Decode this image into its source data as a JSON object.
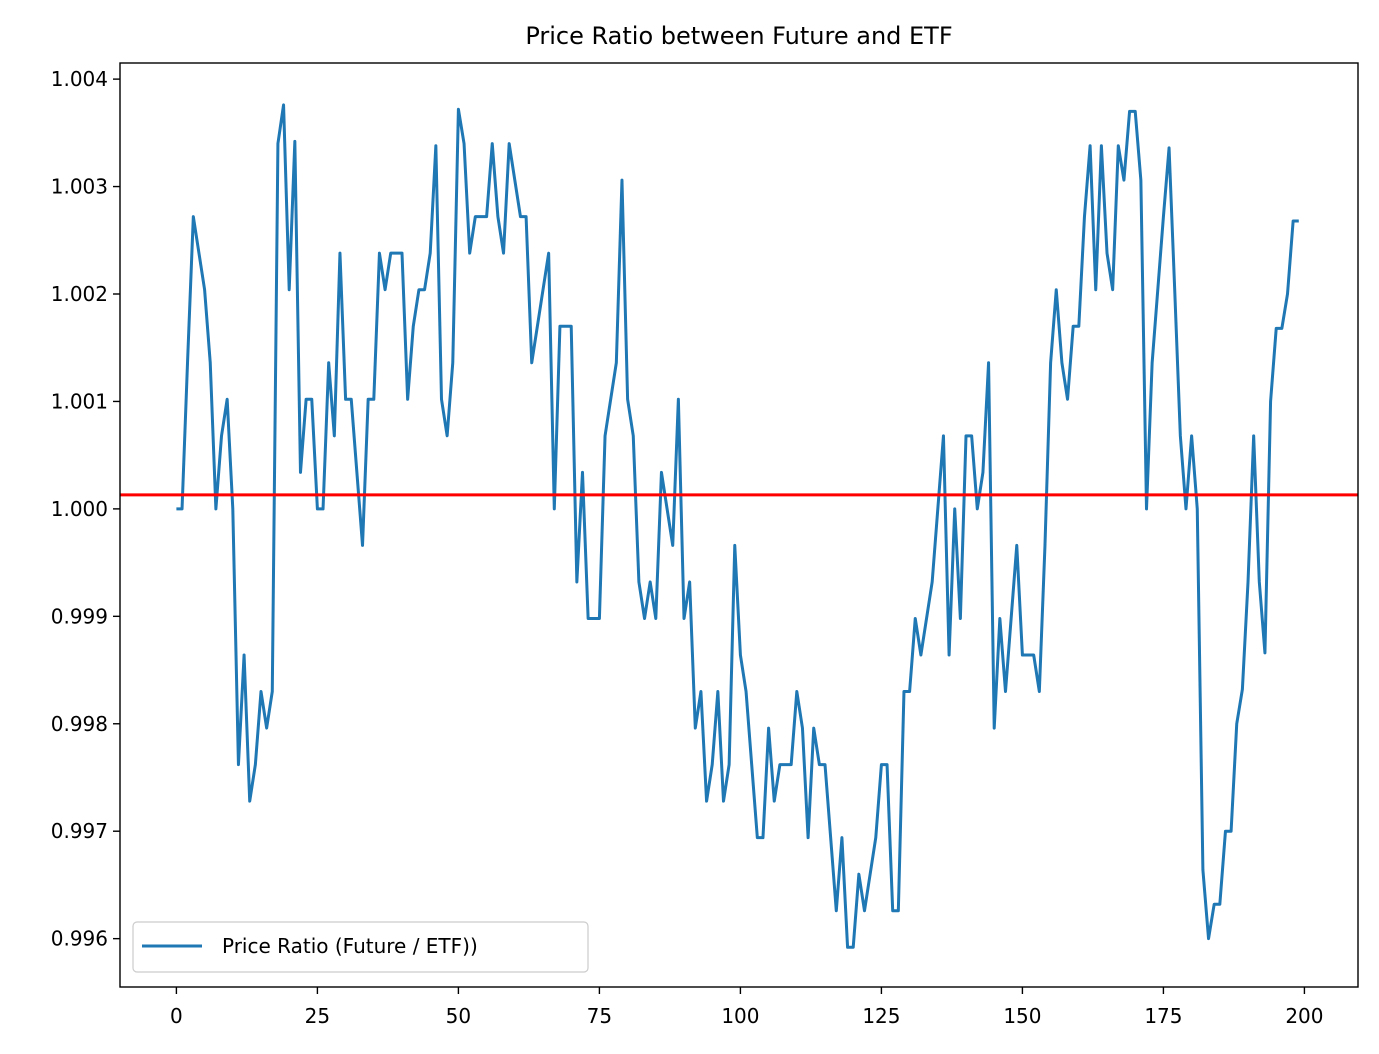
{
  "chart_data": {
    "type": "line",
    "title": "Price Ratio between Future and ETF",
    "xlabel": "",
    "ylabel": "",
    "xlim": [
      -10,
      209.5
    ],
    "ylim": [
      0.99555,
      1.00415
    ],
    "xticks": [
      0,
      25,
      50,
      75,
      100,
      125,
      150,
      175,
      200
    ],
    "xtick_labels": [
      "0",
      "25",
      "50",
      "75",
      "100",
      "125",
      "150",
      "175",
      "200"
    ],
    "yticks": [
      0.996,
      0.997,
      0.998,
      0.999,
      1.0,
      1.001,
      1.002,
      1.003,
      1.004
    ],
    "ytick_labels": [
      "0.996",
      "0.997",
      "0.998",
      "0.999",
      "1.000",
      "1.001",
      "1.002",
      "1.003",
      "1.004"
    ],
    "grid": false,
    "legend_position": "lower left",
    "legend_label": "Price Ratio (Future / ETF))",
    "hline": {
      "y": 1.00013,
      "color": "#ff0000"
    },
    "series": [
      {
        "name": "Price Ratio (Future / ETF))",
        "color": "#1f77b4",
        "x": [
          0,
          1,
          2,
          3,
          4,
          5,
          6,
          7,
          8,
          9,
          10,
          11,
          12,
          13,
          14,
          15,
          16,
          17,
          18,
          19,
          20,
          21,
          22,
          23,
          24,
          25,
          26,
          27,
          28,
          29,
          30,
          31,
          32,
          33,
          34,
          35,
          36,
          37,
          38,
          39,
          40,
          41,
          42,
          43,
          44,
          45,
          46,
          47,
          48,
          49,
          50,
          51,
          52,
          53,
          54,
          55,
          56,
          57,
          58,
          59,
          60,
          61,
          62,
          63,
          64,
          65,
          66,
          67,
          68,
          69,
          70,
          71,
          72,
          73,
          74,
          75,
          76,
          77,
          78,
          79,
          80,
          81,
          82,
          83,
          84,
          85,
          86,
          87,
          88,
          89,
          90,
          91,
          92,
          93,
          94,
          95,
          96,
          97,
          98,
          99,
          100,
          101,
          102,
          103,
          104,
          105,
          106,
          107,
          108,
          109,
          110,
          111,
          112,
          113,
          114,
          115,
          116,
          117,
          118,
          119,
          120,
          121,
          122,
          123,
          124,
          125,
          126,
          127,
          128,
          129,
          130,
          131,
          132,
          133,
          134,
          135,
          136,
          137,
          138,
          139,
          140,
          141,
          142,
          143,
          144,
          145,
          146,
          147,
          148,
          149,
          150,
          151,
          152,
          153,
          154,
          155,
          156,
          157,
          158,
          159,
          160,
          161,
          162,
          163,
          164,
          165,
          166,
          167,
          168,
          169,
          170,
          171,
          172,
          173,
          174,
          175,
          176,
          177,
          178,
          179,
          180,
          181,
          182,
          183,
          184,
          185,
          186,
          187,
          188,
          189,
          190,
          191,
          192,
          193,
          194,
          195,
          196,
          197,
          198,
          199
        ],
        "y": [
          1.0,
          1.0,
          1.0014,
          1.00272,
          1.00238,
          1.00204,
          1.00136,
          1.0,
          1.00068,
          1.00102,
          1.0,
          0.99762,
          0.99864,
          0.99728,
          0.99762,
          0.9983,
          0.99796,
          0.9983,
          1.0034,
          1.00376,
          1.00204,
          1.00342,
          1.00034,
          1.00102,
          1.00102,
          1.0,
          1.0,
          1.00136,
          1.00068,
          1.00238,
          1.00102,
          1.00102,
          1.00034,
          0.99966,
          1.00102,
          1.00102,
          1.00238,
          1.00204,
          1.00238,
          1.00238,
          1.00238,
          1.00102,
          1.0017,
          1.00204,
          1.00204,
          1.00238,
          1.00338,
          1.00102,
          1.00068,
          1.00136,
          1.00372,
          1.0034,
          1.00238,
          1.00272,
          1.00272,
          1.00272,
          1.0034,
          1.00272,
          1.00238,
          1.0034,
          1.00306,
          1.00272,
          1.00272,
          1.00136,
          1.0017,
          1.00204,
          1.00238,
          1.0,
          1.0017,
          1.0017,
          1.0017,
          0.99932,
          1.00034,
          0.99898,
          0.99898,
          0.99898,
          1.00068,
          1.00102,
          1.00136,
          1.00306,
          1.00102,
          1.00068,
          0.99932,
          0.99898,
          0.99932,
          0.99898,
          1.00034,
          1.0,
          0.99966,
          1.00102,
          0.99898,
          0.99932,
          0.99796,
          0.9983,
          0.99728,
          0.99762,
          0.9983,
          0.99728,
          0.99762,
          0.99966,
          0.99864,
          0.9983,
          0.99762,
          0.99694,
          0.99694,
          0.99796,
          0.99728,
          0.99762,
          0.99762,
          0.99762,
          0.9983,
          0.99796,
          0.99694,
          0.99796,
          0.99762,
          0.99762,
          0.99694,
          0.99626,
          0.99694,
          0.99592,
          0.99592,
          0.9966,
          0.99626,
          0.9966,
          0.99694,
          0.99762,
          0.99762,
          0.99626,
          0.99626,
          0.9983,
          0.9983,
          0.99898,
          0.99864,
          0.99898,
          0.99932,
          1.0,
          1.00068,
          0.99864,
          1.0,
          0.99898,
          1.00068,
          1.00068,
          1.0,
          1.00034,
          1.00136,
          0.99796,
          0.99898,
          0.9983,
          0.99898,
          0.99966,
          0.99864,
          0.99864,
          0.99864,
          0.9983,
          0.99966,
          1.00136,
          1.00204,
          1.00136,
          1.00102,
          1.0017,
          1.0017,
          1.00272,
          1.00338,
          1.00204,
          1.00338,
          1.00238,
          1.00204,
          1.00338,
          1.00306,
          1.0037,
          1.0037,
          1.00306,
          1.0,
          1.00136,
          1.00204,
          1.00272,
          1.00336,
          1.00204,
          1.00068,
          1.0,
          1.00068,
          1.0,
          0.99664,
          0.996,
          0.99632,
          0.99632,
          0.997,
          0.997,
          0.998,
          0.99832,
          0.99932,
          1.00068,
          0.99932,
          0.99866,
          1.001,
          1.00168,
          1.00168,
          1.002,
          1.00268,
          1.00268
        ]
      }
    ]
  }
}
